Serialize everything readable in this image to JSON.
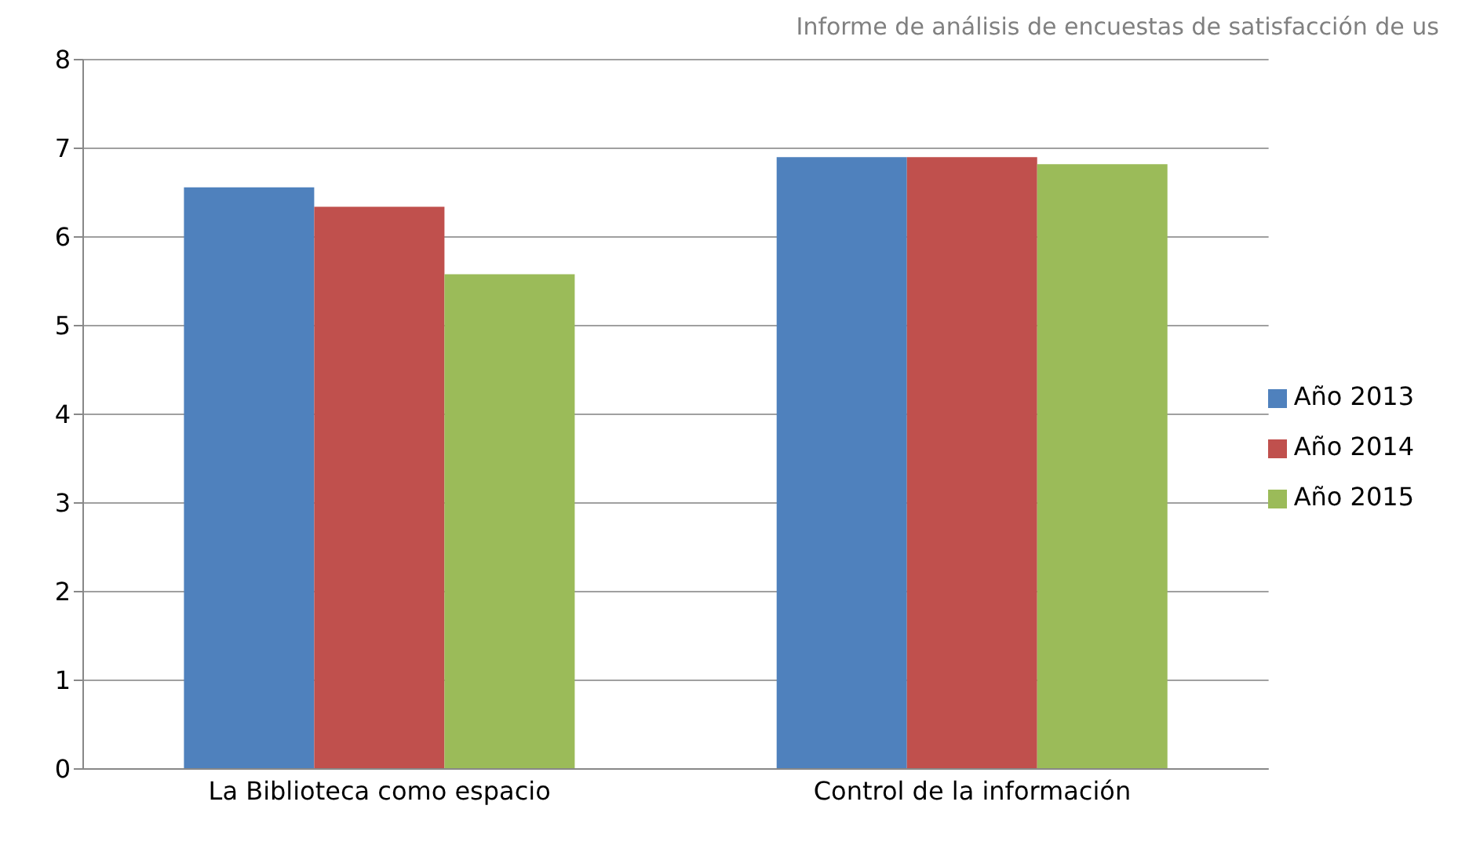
{
  "chart_data": {
    "type": "bar",
    "title": "Informe de análisis de encuestas de satisfacción de us",
    "categories": [
      "La Biblioteca como espacio",
      "Control de la información"
    ],
    "series": [
      {
        "name": "Año 2013",
        "color": "#4f81bd",
        "values": [
          6.56,
          6.9
        ]
      },
      {
        "name": "Año 2014",
        "color": "#c0504d",
        "values": [
          6.34,
          6.9
        ]
      },
      {
        "name": "Año 2015",
        "color": "#9bbb59",
        "values": [
          5.58,
          6.82
        ]
      }
    ],
    "ylim": [
      0,
      8
    ],
    "yticks": [
      0,
      1,
      2,
      3,
      4,
      5,
      6,
      7,
      8
    ],
    "grid": "y",
    "legend": "right"
  }
}
